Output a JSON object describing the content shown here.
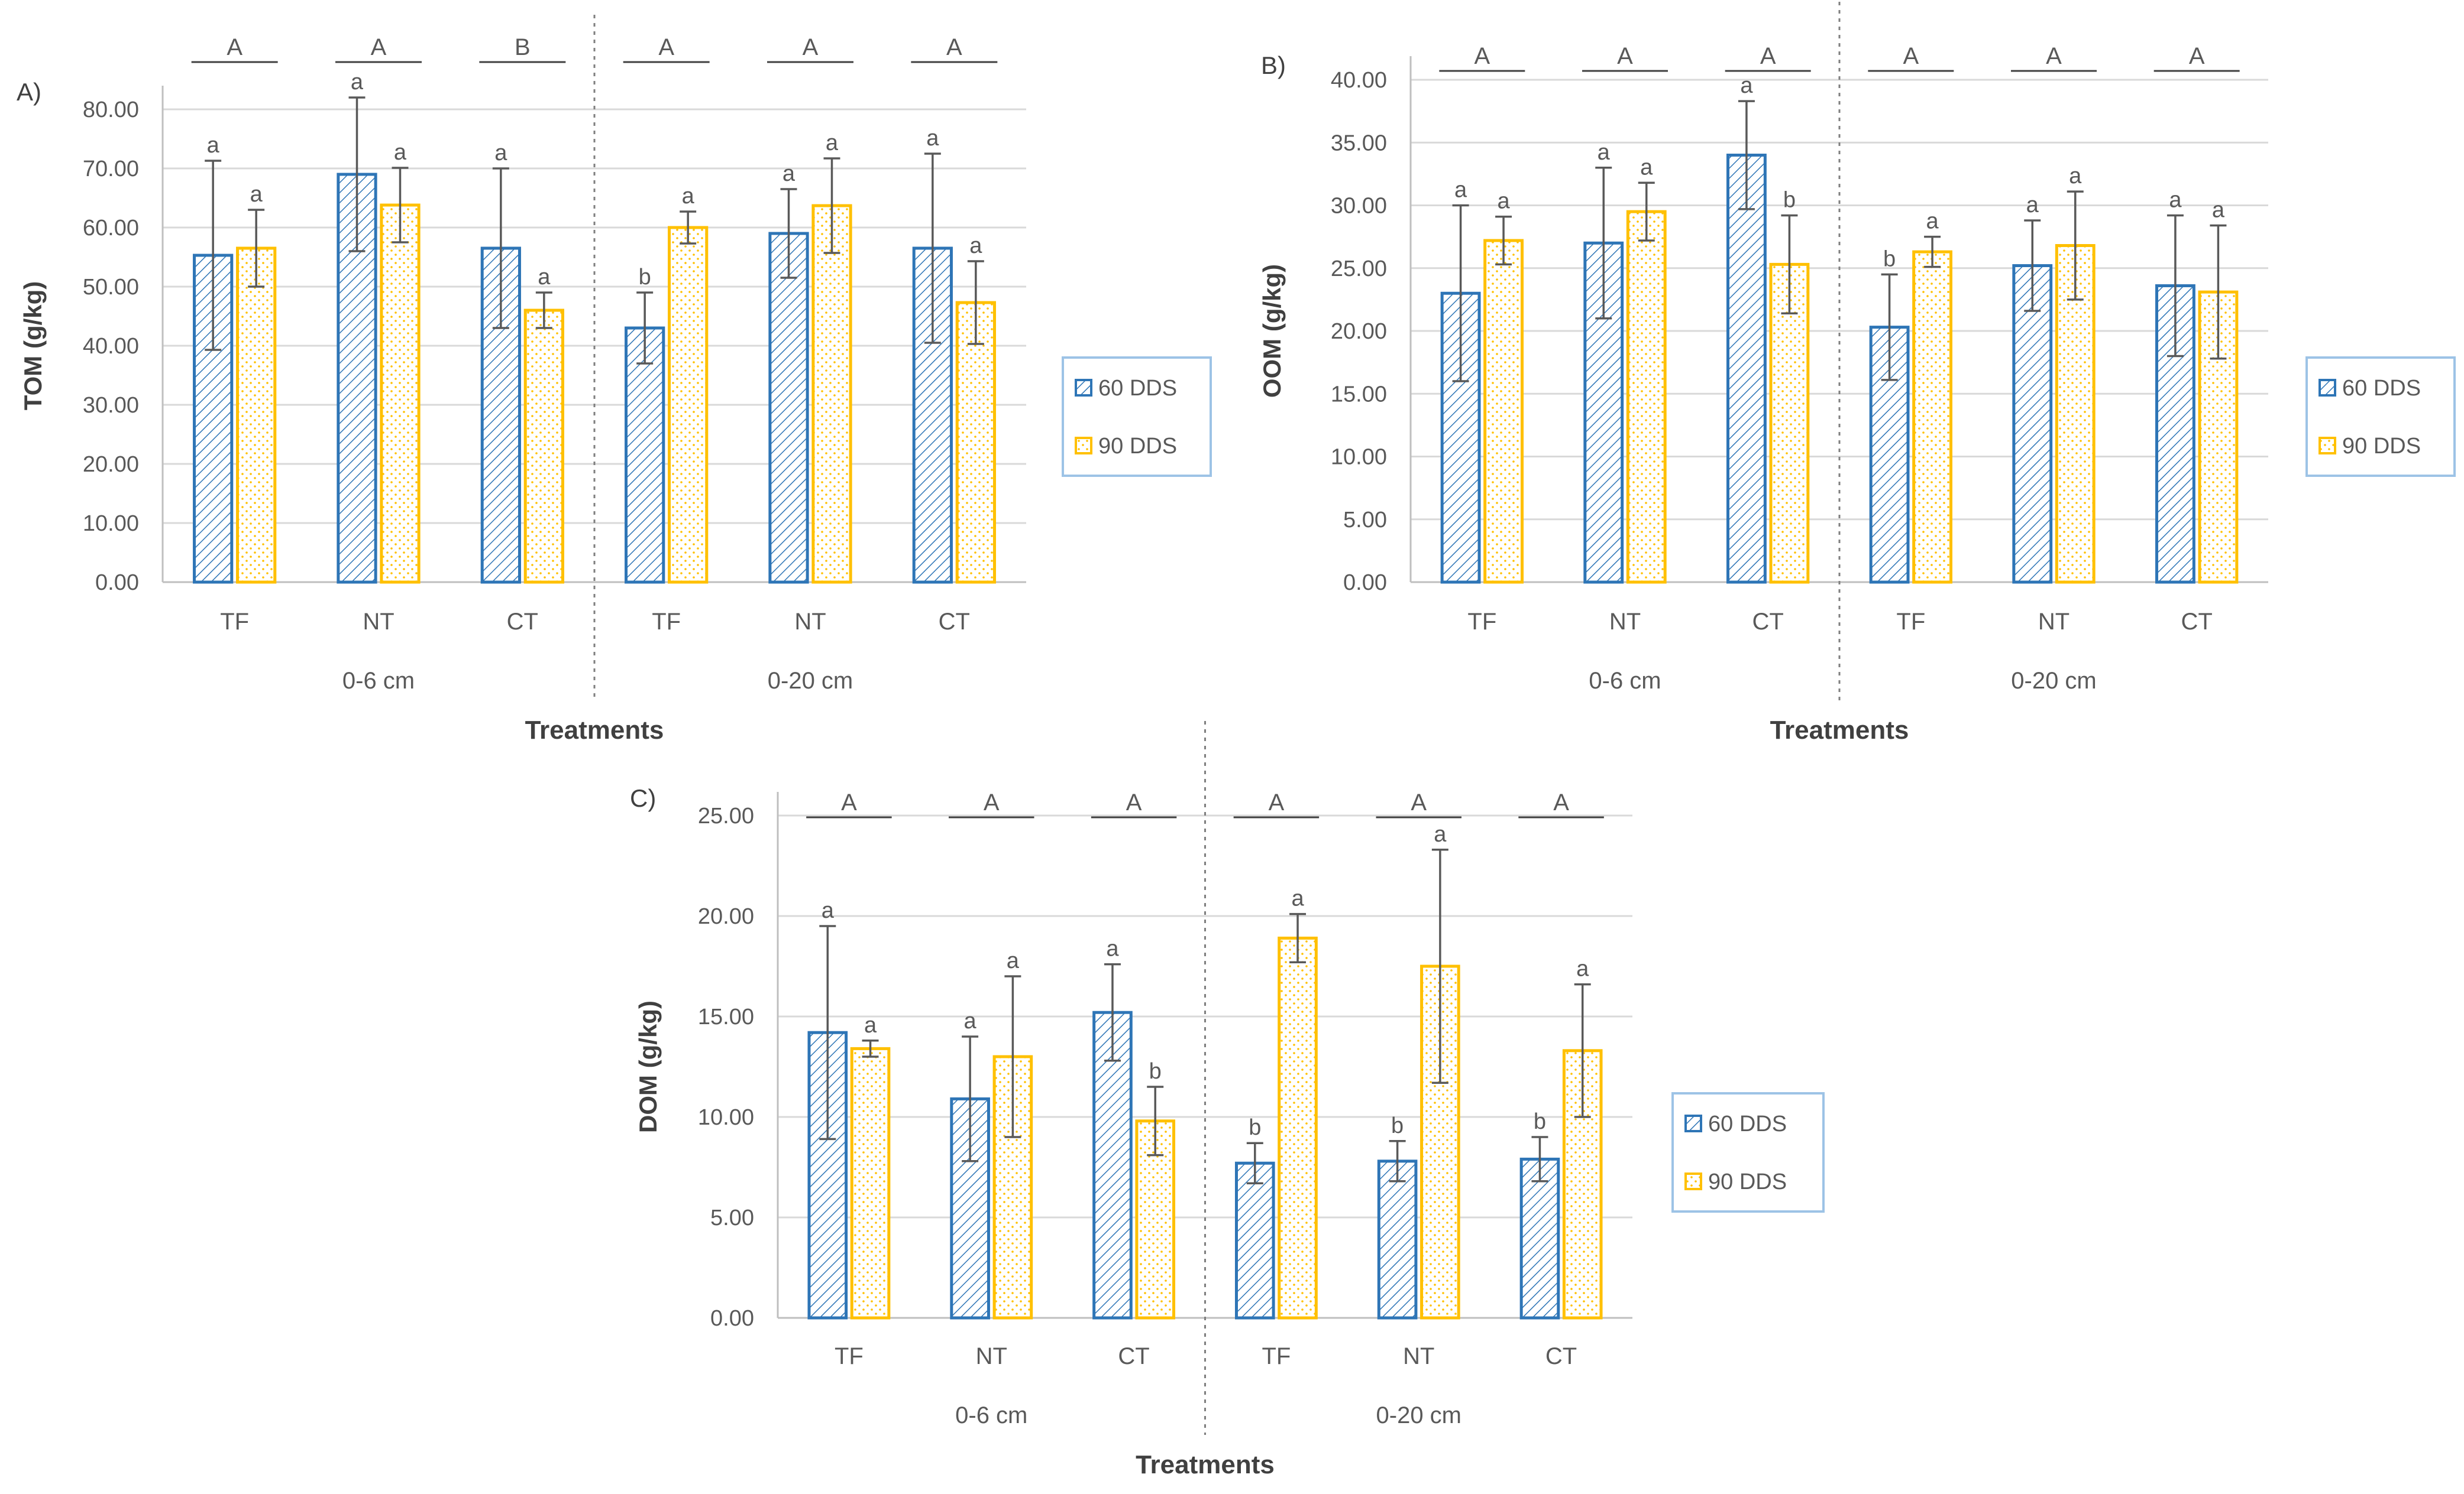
{
  "legend": {
    "series_60": "60 DDS",
    "series_90": "90 DDS"
  },
  "colors": {
    "s60": "#2e75b6",
    "s90": "#ffc000",
    "grid": "#d9d9d9",
    "axis": "#bfbfbf",
    "error": "#595959"
  },
  "chart_data": [
    {
      "panel_label": "A)",
      "type": "bar",
      "ylabel": "TOM (g/kg)",
      "xlabel": "Treatments",
      "ylim": [
        0,
        80
      ],
      "yticks": [
        "0.00",
        "10.00",
        "20.00",
        "30.00",
        "40.00",
        "50.00",
        "60.00",
        "70.00",
        "80.00"
      ],
      "groups": [
        "0-6 cm",
        "0-20 cm"
      ],
      "categories": [
        "TF",
        "NT",
        "CT",
        "TF",
        "NT",
        "CT"
      ],
      "series": [
        {
          "name": "60 DDS",
          "values": [
            55.3,
            69.0,
            56.5,
            43.0,
            59.0,
            56.5
          ],
          "errors": [
            16.0,
            13.0,
            13.5,
            6.0,
            7.5,
            16.0
          ],
          "letters": [
            "a",
            "a",
            "a",
            "b",
            "a",
            "a"
          ]
        },
        {
          "name": "90 DDS",
          "values": [
            56.5,
            63.8,
            46.0,
            60.0,
            63.7,
            47.3
          ],
          "errors": [
            6.5,
            6.3,
            3.0,
            2.7,
            8.0,
            7.0
          ],
          "letters": [
            "a",
            "a",
            "a",
            "a",
            "a",
            "a"
          ]
        }
      ],
      "group_letters": [
        "A",
        "A",
        "B",
        "A",
        "A",
        "A"
      ]
    },
    {
      "panel_label": "B)",
      "type": "bar",
      "ylabel": "OOM (g/kg)",
      "xlabel": "Treatments",
      "ylim": [
        0,
        40
      ],
      "yticks": [
        "0.00",
        "5.00",
        "10.00",
        "15.00",
        "20.00",
        "25.00",
        "30.00",
        "35.00",
        "40.00"
      ],
      "groups": [
        "0-6 cm",
        "0-20 cm"
      ],
      "categories": [
        "TF",
        "NT",
        "CT",
        "TF",
        "NT",
        "CT"
      ],
      "series": [
        {
          "name": "60 DDS",
          "values": [
            23.0,
            27.0,
            34.0,
            20.3,
            25.2,
            23.6
          ],
          "errors": [
            7.0,
            6.0,
            4.3,
            4.2,
            3.6,
            5.6
          ],
          "letters": [
            "a",
            "a",
            "a",
            "b",
            "a",
            "a"
          ]
        },
        {
          "name": "90 DDS",
          "values": [
            27.2,
            29.5,
            25.3,
            26.3,
            26.8,
            23.1
          ],
          "errors": [
            1.9,
            2.3,
            3.9,
            1.2,
            4.3,
            5.3
          ],
          "letters": [
            "a",
            "a",
            "b",
            "a",
            "a",
            "a"
          ]
        }
      ],
      "group_letters": [
        "A",
        "A",
        "A",
        "A",
        "A",
        "A"
      ]
    },
    {
      "panel_label": "C)",
      "type": "bar",
      "ylabel": "DOM (g/kg)",
      "xlabel": "Treatments",
      "ylim": [
        0,
        25
      ],
      "yticks": [
        "0.00",
        "5.00",
        "10.00",
        "15.00",
        "20.00",
        "25.00"
      ],
      "groups": [
        "0-6 cm",
        "0-20 cm"
      ],
      "categories": [
        "TF",
        "NT",
        "CT",
        "TF",
        "NT",
        "CT"
      ],
      "series": [
        {
          "name": "60 DDS",
          "values": [
            14.2,
            10.9,
            15.2,
            7.7,
            7.8,
            7.9
          ],
          "errors": [
            5.3,
            3.1,
            2.4,
            1.0,
            1.0,
            1.1
          ],
          "letters": [
            "a",
            "a",
            "a",
            "b",
            "b",
            "b"
          ]
        },
        {
          "name": "90 DDS",
          "values": [
            13.4,
            13.0,
            9.8,
            18.9,
            17.5,
            13.3
          ],
          "errors": [
            0.4,
            4.0,
            1.7,
            1.2,
            5.8,
            3.3
          ],
          "letters": [
            "a",
            "a",
            "b",
            "a",
            "a",
            "a"
          ]
        }
      ],
      "group_letters": [
        "A",
        "A",
        "A",
        "A",
        "A",
        "A"
      ]
    }
  ]
}
